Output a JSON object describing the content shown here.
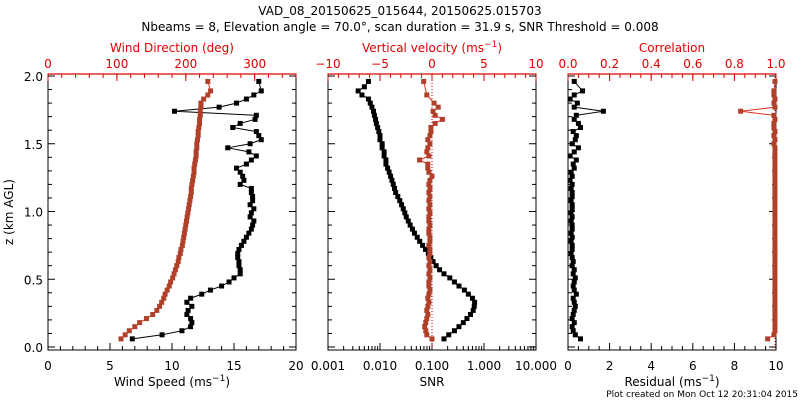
{
  "chart_data": [
    {
      "type": "line",
      "panel": "left",
      "title": "VAD_08_20150625_015644, 20150625.015703",
      "subtitle": "Nbeams = 8, Elevation angle = 70.0°, scan duration = 31.9 s, SNR Threshold = 0.008",
      "ylabel": "z (km AGL)",
      "ylim": [
        0.0,
        2.0
      ],
      "yticks": [
        "0.0",
        "0.5",
        "1.0",
        "1.5",
        "2.0"
      ],
      "xlabel": "Wind Speed (ms",
      "xlabel_sup": "-1",
      "xlabel_end": ")",
      "xlim": [
        0,
        20
      ],
      "xticks": [
        "0",
        "5",
        "10",
        "15",
        "20"
      ],
      "x2label": "Wind Direction (deg)",
      "x2lim": [
        0,
        360
      ],
      "x2ticks": [
        "0",
        "100",
        "200",
        "300"
      ],
      "series": [
        {
          "name": "Wind Speed",
          "color": "#000000",
          "axis": "bottom",
          "z": [
            0.06,
            0.09,
            0.12,
            0.15,
            0.18,
            0.21,
            0.24,
            0.27,
            0.3,
            0.33,
            0.36,
            0.39,
            0.42,
            0.45,
            0.48,
            0.51,
            0.54,
            0.57,
            0.6,
            0.63,
            0.66,
            0.69,
            0.72,
            0.75,
            0.78,
            0.81,
            0.84,
            0.87,
            0.9,
            0.93,
            0.96,
            0.99,
            1.02,
            1.05,
            1.08,
            1.11,
            1.14,
            1.17,
            1.2,
            1.23,
            1.26,
            1.29,
            1.32,
            1.35,
            1.38,
            1.41,
            1.44,
            1.47,
            1.5,
            1.53,
            1.56,
            1.59,
            1.62,
            1.65,
            1.68,
            1.71,
            1.74,
            1.77,
            1.8,
            1.83,
            1.86,
            1.89,
            1.96
          ],
          "values": [
            6.8,
            9.2,
            10.8,
            11.5,
            11.6,
            11.5,
            11.2,
            11.3,
            11.6,
            11.2,
            11.5,
            12.4,
            13.1,
            14.0,
            14.6,
            15.0,
            15.5,
            15.5,
            15.4,
            15.4,
            15.3,
            15.3,
            15.4,
            15.6,
            15.8,
            16.0,
            16.2,
            16.4,
            16.5,
            16.6,
            16.3,
            16.4,
            16.6,
            16.3,
            16.5,
            16.5,
            16.4,
            16.4,
            15.5,
            15.8,
            15.7,
            15.5,
            15.2,
            16.0,
            16.4,
            16.8,
            16.2,
            14.5,
            16.3,
            17.2,
            17.0,
            16.8,
            14.9,
            15.5,
            16.7,
            16.8,
            10.2,
            13.8,
            15.2,
            16.0,
            16.6,
            17.2,
            17.0
          ]
        },
        {
          "name": "Wind Direction",
          "color": "#b0402a",
          "axis": "top",
          "z": [
            0.06,
            0.09,
            0.12,
            0.15,
            0.18,
            0.21,
            0.24,
            0.27,
            0.3,
            0.33,
            0.36,
            0.39,
            0.42,
            0.45,
            0.48,
            0.51,
            0.54,
            0.57,
            0.6,
            0.63,
            0.66,
            0.69,
            0.72,
            0.75,
            0.78,
            0.81,
            0.84,
            0.87,
            0.9,
            0.93,
            0.96,
            0.99,
            1.02,
            1.05,
            1.08,
            1.11,
            1.14,
            1.17,
            1.2,
            1.23,
            1.26,
            1.29,
            1.32,
            1.35,
            1.38,
            1.41,
            1.44,
            1.47,
            1.5,
            1.53,
            1.56,
            1.59,
            1.62,
            1.65,
            1.68,
            1.71,
            1.74,
            1.77,
            1.8,
            1.83,
            1.86,
            1.89,
            1.96
          ],
          "values": [
            106,
            112,
            118,
            126,
            133,
            143,
            152,
            158,
            162,
            165,
            168,
            170,
            173,
            176,
            178,
            181,
            183,
            185,
            187,
            189,
            190,
            192,
            193,
            195,
            196,
            197,
            198,
            199,
            200,
            201,
            202,
            203,
            204,
            205,
            206,
            207,
            208,
            208,
            209,
            210,
            211,
            212,
            212,
            213,
            214,
            215,
            215,
            216,
            216,
            217,
            218,
            218,
            219,
            220,
            220,
            221,
            221,
            222,
            222,
            226,
            232,
            236,
            232
          ]
        }
      ]
    },
    {
      "type": "line",
      "panel": "middle",
      "xlabel": "SNR",
      "xscale": "log",
      "xlim": [
        0.001,
        10.0
      ],
      "xticks": [
        "0.001",
        "0.010",
        "0.100",
        "1.000",
        "10.000"
      ],
      "x2label": "Vertical velocity (ms",
      "x2label_sup": "-1",
      "x2label_end": ")",
      "x2lim": [
        -10,
        10
      ],
      "x2ticks": [
        "-10",
        "-5",
        "0",
        "5",
        "10"
      ],
      "ylim": [
        0.0,
        2.0
      ],
      "series": [
        {
          "name": "SNR",
          "color": "#000000",
          "axis": "bottom",
          "z": [
            0.06,
            0.09,
            0.12,
            0.15,
            0.18,
            0.21,
            0.24,
            0.27,
            0.3,
            0.33,
            0.36,
            0.39,
            0.42,
            0.45,
            0.48,
            0.51,
            0.54,
            0.57,
            0.6,
            0.63,
            0.66,
            0.69,
            0.72,
            0.75,
            0.78,
            0.81,
            0.84,
            0.87,
            0.9,
            0.93,
            0.96,
            0.99,
            1.02,
            1.05,
            1.08,
            1.11,
            1.14,
            1.17,
            1.2,
            1.23,
            1.26,
            1.29,
            1.32,
            1.35,
            1.38,
            1.41,
            1.44,
            1.47,
            1.5,
            1.53,
            1.56,
            1.59,
            1.62,
            1.65,
            1.68,
            1.71,
            1.74,
            1.77,
            1.8,
            1.83,
            1.86,
            1.89,
            1.92,
            1.96
          ],
          "values": [
            0.17,
            0.21,
            0.27,
            0.33,
            0.4,
            0.47,
            0.55,
            0.62,
            0.65,
            0.66,
            0.6,
            0.5,
            0.42,
            0.33,
            0.27,
            0.22,
            0.17,
            0.14,
            0.12,
            0.105,
            0.095,
            0.085,
            0.075,
            0.066,
            0.058,
            0.052,
            0.046,
            0.042,
            0.038,
            0.035,
            0.032,
            0.03,
            0.028,
            0.026,
            0.024,
            0.022,
            0.02,
            0.019,
            0.018,
            0.017,
            0.016,
            0.015,
            0.014,
            0.013,
            0.013,
            0.012,
            0.012,
            0.011,
            0.011,
            0.01,
            0.01,
            0.0095,
            0.009,
            0.0085,
            0.0082,
            0.0078,
            0.0075,
            0.007,
            0.0065,
            0.006,
            0.0045,
            0.0038,
            0.005,
            0.006
          ]
        },
        {
          "name": "Vertical velocity",
          "color": "#b0402a",
          "axis": "top",
          "z": [
            0.06,
            0.09,
            0.12,
            0.15,
            0.18,
            0.21,
            0.24,
            0.27,
            0.3,
            0.33,
            0.36,
            0.39,
            0.42,
            0.45,
            0.48,
            0.51,
            0.54,
            0.57,
            0.6,
            0.63,
            0.66,
            0.69,
            0.72,
            0.75,
            0.78,
            0.81,
            0.84,
            0.87,
            0.9,
            0.93,
            0.96,
            0.99,
            1.02,
            1.05,
            1.08,
            1.11,
            1.14,
            1.17,
            1.2,
            1.23,
            1.26,
            1.29,
            1.32,
            1.35,
            1.38,
            1.41,
            1.44,
            1.47,
            1.5,
            1.53,
            1.56,
            1.59,
            1.62,
            1.65,
            1.68,
            1.71,
            1.74,
            1.77,
            1.8,
            1.86,
            1.96
          ],
          "values": [
            0.0,
            -0.5,
            -0.6,
            -0.7,
            -0.6,
            -0.5,
            -0.4,
            -0.5,
            -0.4,
            -0.3,
            -0.4,
            -0.3,
            -0.2,
            -0.3,
            -0.3,
            -0.2,
            -0.3,
            -0.2,
            -0.3,
            -0.2,
            -0.3,
            -0.2,
            -0.2,
            -0.3,
            -0.2,
            -0.2,
            -0.3,
            -0.3,
            -0.2,
            -0.3,
            -0.3,
            -0.2,
            -0.3,
            -0.2,
            -0.3,
            -0.2,
            -0.3,
            -0.2,
            -0.3,
            -0.2,
            0.0,
            -0.3,
            -0.4,
            -0.4,
            -1.2,
            -0.3,
            -0.5,
            -0.4,
            -0.2,
            -0.4,
            -0.2,
            -0.1,
            -0.1,
            0.3,
            1.0,
            0.3,
            0.1,
            0.6,
            0.2,
            -0.5,
            -0.8
          ]
        }
      ]
    },
    {
      "type": "line",
      "panel": "right",
      "xlabel": "Residual (ms",
      "xlabel_sup": "-1",
      "xlabel_end": ")",
      "xlim": [
        0,
        10
      ],
      "xticks": [
        "0",
        "2",
        "4",
        "6",
        "8",
        "10"
      ],
      "x2label": "Correlation",
      "x2lim": [
        0.0,
        1.0
      ],
      "x2ticks": [
        "0.0",
        "0.2",
        "0.4",
        "0.6",
        "0.8",
        "1.0"
      ],
      "ylim": [
        0.0,
        2.0
      ],
      "series": [
        {
          "name": "Residual",
          "color": "#000000",
          "axis": "bottom",
          "z": [
            0.06,
            0.09,
            0.12,
            0.15,
            0.18,
            0.21,
            0.24,
            0.27,
            0.3,
            0.33,
            0.36,
            0.39,
            0.42,
            0.45,
            0.48,
            0.51,
            0.54,
            0.57,
            0.6,
            0.63,
            0.66,
            0.69,
            0.72,
            0.75,
            0.78,
            0.81,
            0.84,
            0.87,
            0.9,
            0.93,
            0.96,
            0.99,
            1.02,
            1.05,
            1.08,
            1.11,
            1.14,
            1.17,
            1.2,
            1.23,
            1.26,
            1.29,
            1.32,
            1.35,
            1.38,
            1.41,
            1.44,
            1.47,
            1.5,
            1.53,
            1.56,
            1.59,
            1.62,
            1.65,
            1.68,
            1.71,
            1.74,
            1.77,
            1.8,
            1.83,
            1.86,
            1.89,
            1.96
          ],
          "values": [
            0.6,
            0.35,
            0.25,
            0.2,
            0.3,
            0.2,
            0.25,
            0.3,
            0.35,
            0.3,
            0.25,
            0.4,
            0.3,
            0.25,
            0.3,
            0.35,
            0.25,
            0.3,
            0.2,
            0.25,
            0.2,
            0.15,
            0.2,
            0.2,
            0.15,
            0.2,
            0.15,
            0.2,
            0.2,
            0.15,
            0.2,
            0.15,
            0.2,
            0.2,
            0.15,
            0.2,
            0.2,
            0.15,
            0.2,
            0.1,
            0.2,
            0.15,
            0.3,
            0.25,
            0.4,
            0.1,
            0.3,
            0.5,
            0.2,
            0.35,
            0.4,
            0.25,
            0.6,
            0.5,
            0.3,
            0.4,
            1.7,
            0.3,
            0.45,
            0.1,
            0.3,
            0.7,
            0.3
          ]
        },
        {
          "name": "Correlation",
          "color": "#b0402a",
          "axis": "top",
          "z": [
            0.06,
            0.09,
            0.12,
            0.15,
            0.18,
            0.21,
            0.24,
            0.27,
            0.3,
            0.33,
            0.36,
            0.39,
            0.42,
            0.45,
            0.48,
            0.51,
            0.54,
            0.57,
            0.6,
            0.63,
            0.66,
            0.69,
            0.72,
            0.75,
            0.78,
            0.81,
            0.84,
            0.87,
            0.9,
            0.93,
            0.96,
            0.99,
            1.02,
            1.05,
            1.08,
            1.11,
            1.14,
            1.17,
            1.2,
            1.23,
            1.26,
            1.29,
            1.32,
            1.35,
            1.38,
            1.41,
            1.44,
            1.47,
            1.5,
            1.53,
            1.56,
            1.59,
            1.62,
            1.65,
            1.68,
            1.71,
            1.74,
            1.77,
            1.8,
            1.83,
            1.86,
            1.89,
            1.96
          ],
          "values": [
            0.96,
            0.99,
            0.995,
            0.995,
            0.995,
            0.995,
            0.995,
            0.995,
            0.995,
            0.995,
            0.995,
            0.995,
            0.995,
            0.995,
            0.995,
            0.995,
            0.995,
            0.995,
            0.995,
            0.995,
            0.995,
            0.995,
            0.995,
            0.995,
            0.995,
            0.995,
            0.995,
            0.995,
            0.995,
            0.995,
            0.995,
            0.995,
            0.995,
            0.995,
            0.995,
            0.995,
            0.995,
            0.995,
            0.995,
            0.995,
            0.995,
            0.995,
            0.995,
            0.995,
            0.995,
            0.995,
            0.995,
            0.995,
            0.99,
            0.995,
            0.99,
            0.995,
            0.99,
            0.99,
            0.995,
            0.99,
            0.83,
            0.995,
            0.99,
            0.995,
            0.99,
            0.99,
            0.995
          ]
        }
      ]
    }
  ],
  "footer": "Plot created on Mon Oct 12 20:31:04 2015"
}
